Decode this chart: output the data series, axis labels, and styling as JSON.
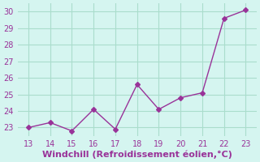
{
  "x": [
    13,
    14,
    15,
    16,
    17,
    18,
    19,
    20,
    21,
    22,
    23
  ],
  "y": [
    23.0,
    23.3,
    22.8,
    24.1,
    22.9,
    25.6,
    24.1,
    24.8,
    25.1,
    29.6,
    30.1
  ],
  "xlim": [
    12.5,
    23.5
  ],
  "ylim": [
    22.5,
    30.5
  ],
  "xticks": [
    13,
    14,
    15,
    16,
    17,
    18,
    19,
    20,
    21,
    22,
    23
  ],
  "yticks": [
    23,
    24,
    25,
    26,
    27,
    28,
    29,
    30
  ],
  "xlabel": "Windchill (Refroidissement éolien,°C)",
  "line_color": "#993399",
  "marker": "D",
  "marker_size": 3,
  "background_color": "#d5f5f0",
  "grid_color": "#aaddcc",
  "tick_fontsize": 7,
  "xlabel_fontsize": 8
}
